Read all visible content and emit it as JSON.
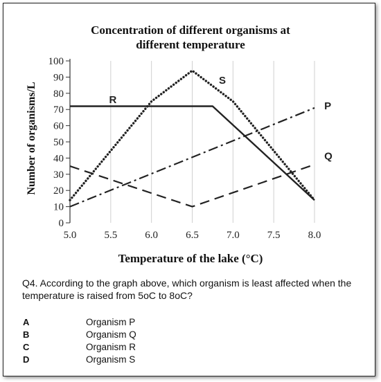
{
  "chart_data": {
    "type": "line",
    "title": [
      "Concentration  of different organisms  at",
      "different temperature"
    ],
    "xlabel": "Temperature  of the lake (°C)",
    "ylabel": "Number of organisms/L",
    "xlim": [
      5.0,
      8.0
    ],
    "ylim": [
      0,
      100
    ],
    "x_ticks": [
      "5.0",
      "5.5",
      "6.0",
      "6.5",
      "7.0",
      "7.5",
      "8.0"
    ],
    "y_ticks": [
      "0",
      "10",
      "20",
      "30",
      "40",
      "50",
      "60",
      "70",
      "80",
      "90",
      "100"
    ],
    "grid": "vertical",
    "series": [
      {
        "name": "R",
        "style": "solid",
        "points": [
          [
            5.0,
            72
          ],
          [
            6.75,
            72
          ],
          [
            8.0,
            14
          ]
        ]
      },
      {
        "name": "S",
        "style": "dotted",
        "points": [
          [
            5.0,
            14
          ],
          [
            6.0,
            75
          ],
          [
            6.5,
            94
          ],
          [
            7.0,
            75
          ],
          [
            8.0,
            14
          ]
        ]
      },
      {
        "name": "P",
        "style": "dashdot",
        "points": [
          [
            5.0,
            10
          ],
          [
            8.0,
            71
          ]
        ]
      },
      {
        "name": "Q",
        "style": "dashed",
        "points": [
          [
            5.0,
            35
          ],
          [
            6.5,
            10
          ],
          [
            8.0,
            36
          ]
        ]
      }
    ]
  },
  "question": {
    "text": "Q4. According to the graph above, which organism is least affected when the temperature is raised from 5oC to 8oC?",
    "options": [
      {
        "letter": "A",
        "text": "Organism P"
      },
      {
        "letter": "B",
        "text": "Organism Q"
      },
      {
        "letter": "C",
        "text": "Organism R"
      },
      {
        "letter": "D",
        "text": "Organism S"
      }
    ]
  }
}
